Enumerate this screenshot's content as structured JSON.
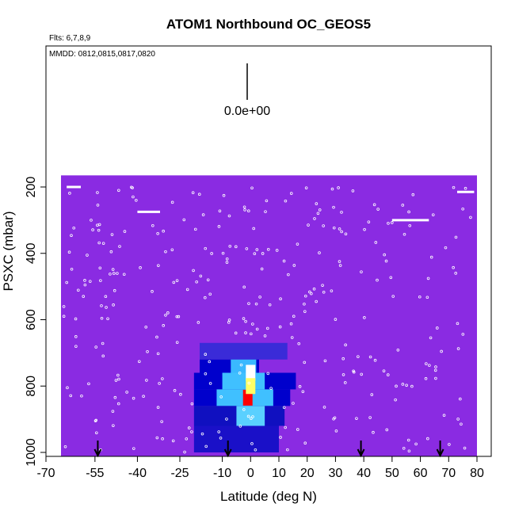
{
  "chart_data": {
    "type": "heatmap",
    "title": "ATOM1 Northbound OC_GEOS5",
    "subtitle_flights": "Flts: 6,7,8,9",
    "subtitle_dates": "MMDD: 0812,0815,0817,0820",
    "scale_label": "0.0e+00",
    "xlabel": "Latitude (deg N)",
    "ylabel": "PSXC (mbar)",
    "xlim": [
      -70,
      80
    ],
    "ylim": [
      1010,
      0
    ],
    "x_ticks": [
      -70,
      -55,
      -40,
      -25,
      -10,
      0,
      10,
      20,
      30,
      40,
      50,
      60,
      70,
      80
    ],
    "x_tick_labels": [
      "-70",
      "-55",
      "-40",
      "-25",
      "-10",
      "0",
      "10",
      "20",
      "30",
      "40",
      "50",
      "60",
      "70",
      "80"
    ],
    "y_ticks": [
      200,
      400,
      600,
      800,
      1000
    ],
    "y_tick_labels": [
      "200",
      "400",
      "600",
      "800",
      "1000"
    ],
    "field_extent": {
      "x": [
        -67,
        80
      ],
      "y": [
        165,
        1000
      ]
    },
    "background_color": "#8a2be2",
    "hotspots": [
      {
        "x": -1,
        "y": 835,
        "color": "#ff0000"
      },
      {
        "x": 0,
        "y": 760,
        "color": "#ffffff"
      },
      {
        "x": 0,
        "y": 800,
        "color": "#ffff66"
      }
    ],
    "bands": [
      {
        "x": [
          -18,
          13
        ],
        "y": [
          670,
          720
        ],
        "color": "#3a2bd8"
      },
      {
        "x": [
          -18,
          3
        ],
        "y": [
          720,
          760
        ],
        "color": "#0000cc"
      },
      {
        "x": [
          -7,
          2
        ],
        "y": [
          720,
          760
        ],
        "color": "#3ab8ff"
      },
      {
        "x": [
          -20,
          16
        ],
        "y": [
          760,
          810
        ],
        "color": "#0000cc"
      },
      {
        "x": [
          -10,
          5
        ],
        "y": [
          760,
          810
        ],
        "color": "#40c0ff"
      },
      {
        "x": [
          -20,
          14
        ],
        "y": [
          810,
          860
        ],
        "color": "#0000cc"
      },
      {
        "x": [
          -12,
          8
        ],
        "y": [
          810,
          860
        ],
        "color": "#40c0ff"
      },
      {
        "x": [
          -20,
          12
        ],
        "y": [
          860,
          920
        ],
        "color": "#1010c0"
      },
      {
        "x": [
          -5,
          5
        ],
        "y": [
          860,
          920
        ],
        "color": "#5ad0ff"
      },
      {
        "x": [
          -20,
          10
        ],
        "y": [
          920,
          1000
        ],
        "color": "#1a10c8"
      }
    ],
    "arrows_latitude": [
      -54,
      -8,
      39,
      67
    ],
    "flight_level_segments": [
      {
        "x": [
          -65,
          -60
        ],
        "y": 200
      },
      {
        "x": [
          -40,
          -32
        ],
        "y": 275
      },
      {
        "x": [
          50,
          63
        ],
        "y": 300
      },
      {
        "x": [
          73,
          79
        ],
        "y": 215
      }
    ]
  }
}
